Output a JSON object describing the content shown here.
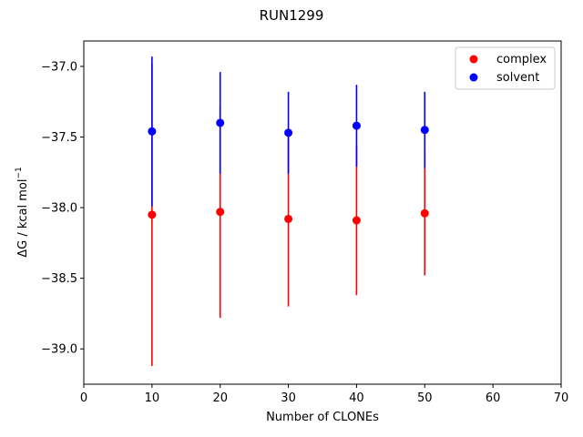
{
  "chart_data": {
    "type": "scatter",
    "title": "RUN1299",
    "xlabel": "Number of CLONEs",
    "ylabel_main": "ΔG / kcal mol",
    "ylabel_sup": "−1",
    "xlim": [
      0,
      70
    ],
    "ylim": [
      -39.25,
      -36.82
    ],
    "x_ticks": [
      0,
      10,
      20,
      30,
      40,
      50,
      60,
      70
    ],
    "x_tick_labels": [
      "0",
      "10",
      "20",
      "30",
      "40",
      "50",
      "60",
      "70"
    ],
    "y_ticks": [
      -39.0,
      -38.5,
      -38.0,
      -37.5,
      -37.0
    ],
    "y_tick_labels": [
      "−39.0",
      "−38.5",
      "−38.0",
      "−37.5",
      "−37.0"
    ],
    "grid": false,
    "legend_position": "top-right",
    "series": [
      {
        "name": "complex",
        "color": "#ff0000",
        "points": [
          {
            "x": 10,
            "y": -38.05,
            "err": 1.07
          },
          {
            "x": 20,
            "y": -38.03,
            "err": 0.75
          },
          {
            "x": 30,
            "y": -38.08,
            "err": 0.62
          },
          {
            "x": 40,
            "y": -38.09,
            "err": 0.53
          },
          {
            "x": 50,
            "y": -38.04,
            "err": 0.44
          }
        ]
      },
      {
        "name": "solvent",
        "color": "#0000ff",
        "points": [
          {
            "x": 10,
            "y": -37.46,
            "err": 0.53
          },
          {
            "x": 20,
            "y": -37.4,
            "err": 0.36
          },
          {
            "x": 30,
            "y": -37.47,
            "err": 0.29
          },
          {
            "x": 40,
            "y": -37.42,
            "err": 0.29
          },
          {
            "x": 50,
            "y": -37.45,
            "err": 0.27
          }
        ]
      }
    ]
  }
}
